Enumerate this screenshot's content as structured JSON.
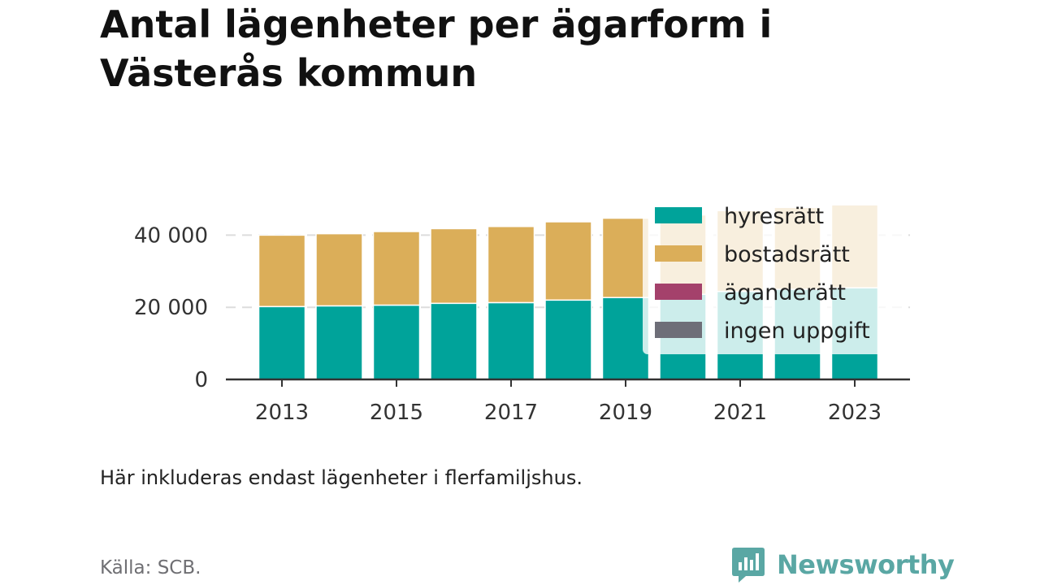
{
  "title": "Antal lägenheter per ägarform i Västerås kommun",
  "note": "Här inkluderas endast lägenheter i flerfamiljshus.",
  "source": "Källa: SCB.",
  "brand": {
    "name": "Newsworthy",
    "color": "#5aa7a4"
  },
  "colors": {
    "hyresratt": "#00a39a",
    "bostadsratt": "#dbae59",
    "aganderatt": "#a4416b",
    "ingen": "#6e6e78",
    "axis": "#333333",
    "grid": "#dddddd",
    "text": "#333333"
  },
  "chart_data": {
    "type": "bar",
    "stacked": true,
    "categories": [
      "2013",
      "2014",
      "2015",
      "2016",
      "2017",
      "2018",
      "2019",
      "2020",
      "2021",
      "2022",
      "2023"
    ],
    "x_tick_labels": [
      "2013",
      "2015",
      "2017",
      "2019",
      "2021",
      "2023"
    ],
    "y_tick_labels": [
      "0",
      "20 000",
      "40 000"
    ],
    "y_ticks": [
      0,
      20000,
      40000
    ],
    "ylim": [
      0,
      50000
    ],
    "grid": true,
    "legend_position": "top-right",
    "series": [
      {
        "name": "hyresrätt",
        "color": "#00a39a",
        "values": [
          20200,
          20400,
          20600,
          21100,
          21300,
          22000,
          22700,
          23600,
          24400,
          25000,
          25400
        ]
      },
      {
        "name": "bostadsrätt",
        "color": "#dbae59",
        "values": [
          19800,
          20000,
          20400,
          20700,
          21100,
          21700,
          22000,
          22000,
          22400,
          22700,
          23000
        ]
      },
      {
        "name": "äganderätt",
        "color": "#a4416b",
        "values": [
          0,
          0,
          0,
          0,
          0,
          0,
          0,
          0,
          0,
          0,
          0
        ]
      },
      {
        "name": "ingen uppgift",
        "color": "#6e6e78",
        "values": [
          0,
          0,
          0,
          0,
          0,
          0,
          0,
          0,
          0,
          0,
          0
        ]
      }
    ]
  }
}
